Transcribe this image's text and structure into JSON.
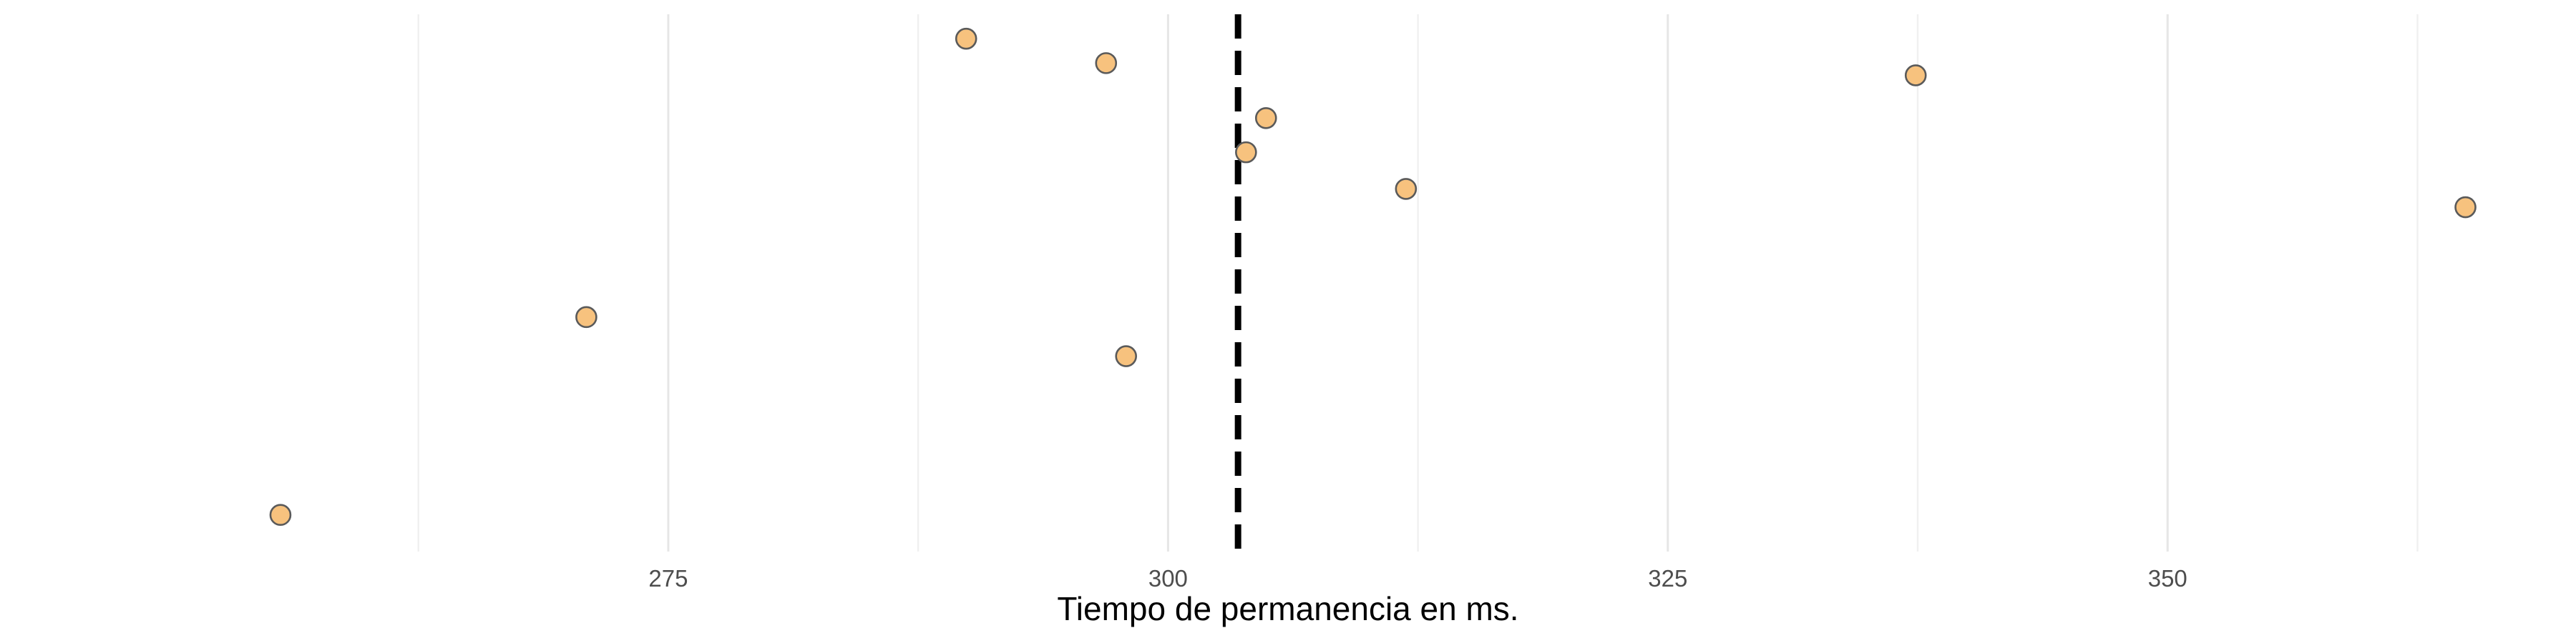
{
  "chart_data": {
    "type": "scatter",
    "title": "",
    "xlabel": "Tiempo de permanencia en ms.",
    "ylabel": "",
    "xlim": [
      242,
      370
    ],
    "x_ticks": [
      275,
      300,
      325,
      350
    ],
    "x_minor_ticks": [
      262.5,
      287.5,
      312.5,
      337.5,
      362.5
    ],
    "y_axis_shown": false,
    "grid": "vertical",
    "legend": "none",
    "points": [
      {
        "x": 289.9,
        "y": 13
      },
      {
        "x": 296.9,
        "y": 12.5
      },
      {
        "x": 337.4,
        "y": 12.25
      },
      {
        "x": 304.9,
        "y": 11.375
      },
      {
        "x": 303.9,
        "y": 10.675
      },
      {
        "x": 311.9,
        "y": 9.925
      },
      {
        "x": 364.9,
        "y": 9.55
      },
      {
        "x": 270.9,
        "y": 7.3
      },
      {
        "x": 297.9,
        "y": 6.5
      },
      {
        "x": 255.6,
        "y": 3.25
      }
    ],
    "reference_line": {
      "x": 303.5,
      "style": "dashed"
    },
    "colors": {
      "point_fill": "#f7c27e",
      "point_stroke": "#5a5a5a",
      "reference_line": "#000000"
    }
  }
}
